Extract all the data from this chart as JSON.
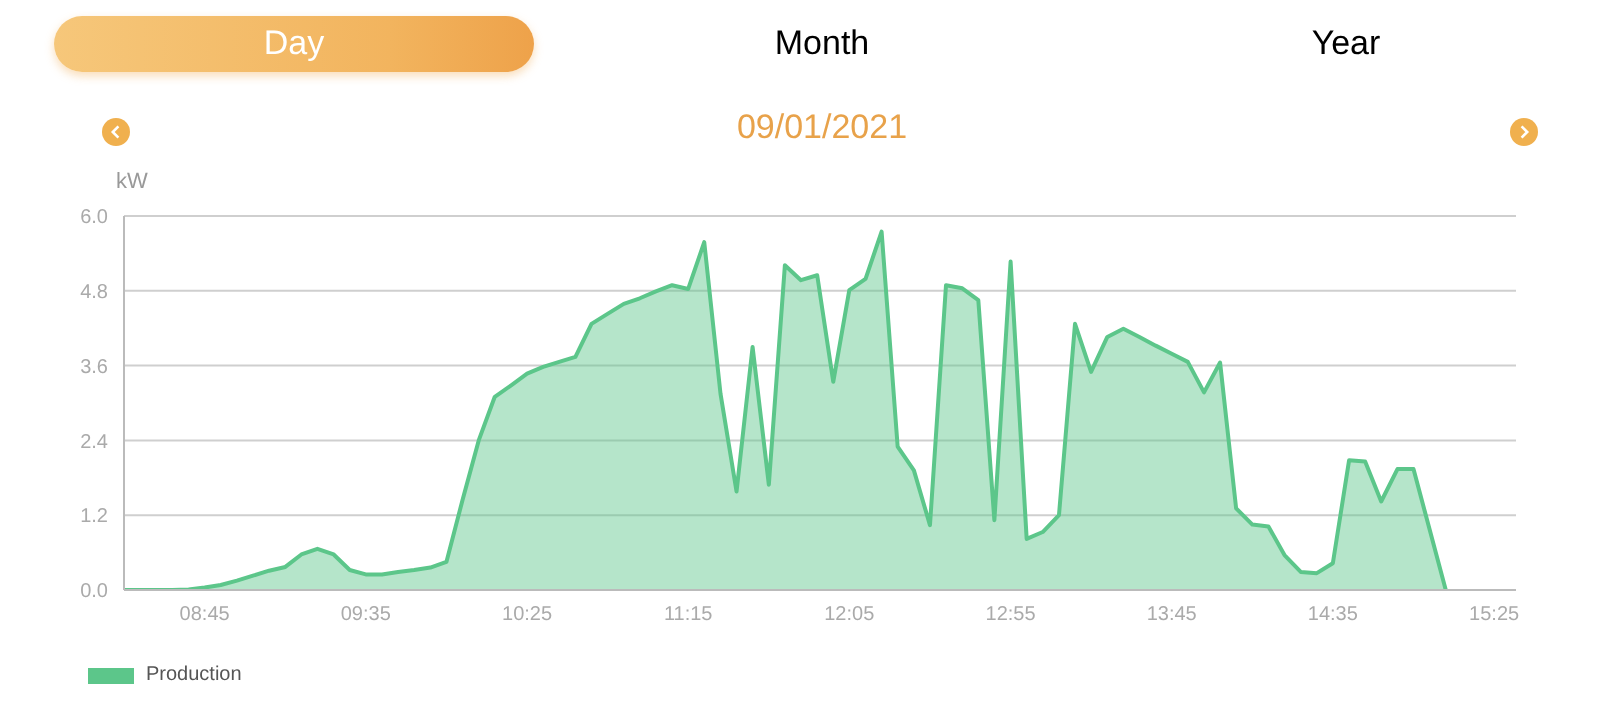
{
  "chart_data": {
    "type": "area",
    "title": "09/01/2021",
    "annotations": [
      "Day",
      "Month",
      "Year"
    ],
    "ylabel": "kW",
    "x": [
      8.333,
      8.417,
      8.5,
      8.583,
      8.667,
      8.75,
      8.833,
      8.917,
      9.0,
      9.083,
      9.167,
      9.25,
      9.333,
      9.417,
      9.5,
      9.583,
      9.667,
      9.75,
      9.833,
      9.917,
      10.0,
      10.083,
      10.167,
      10.25,
      10.333,
      10.417,
      10.5,
      10.583,
      10.667,
      10.75,
      10.833,
      10.917,
      11.0,
      11.083,
      11.167,
      11.25,
      11.333,
      11.417,
      11.5,
      11.583,
      11.667,
      11.75,
      11.833,
      11.917,
      12.0,
      12.083,
      12.167,
      12.25,
      12.333,
      12.417,
      12.5,
      12.583,
      12.667,
      12.75,
      12.833,
      12.917,
      13.0,
      13.083,
      13.167,
      13.25,
      13.333,
      13.417,
      13.5,
      13.583,
      13.667,
      13.75,
      13.833,
      13.917,
      14.0,
      14.083,
      14.167,
      14.25,
      14.333,
      14.417,
      14.5,
      14.583,
      14.667,
      14.75,
      14.833,
      14.917,
      15.0,
      15.167
    ],
    "series": [
      {
        "name": "Production",
        "color": "#5cc68a",
        "values": [
          0,
          0,
          0,
          0,
          0.01,
          0.04,
          0.08,
          0.15,
          0.23,
          0.31,
          0.37,
          0.57,
          0.66,
          0.57,
          0.32,
          0.25,
          0.25,
          0.29,
          0.32,
          0.36,
          0.45,
          1.44,
          2.4,
          3.1,
          3.28,
          3.47,
          3.58,
          3.66,
          3.74,
          4.27,
          4.43,
          4.59,
          4.68,
          4.79,
          4.89,
          4.83,
          5.58,
          3.15,
          1.58,
          3.9,
          1.69,
          5.21,
          4.97,
          5.05,
          3.34,
          4.81,
          4.99,
          5.75,
          2.3,
          1.92,
          1.04,
          4.89,
          4.84,
          4.65,
          1.12,
          5.27,
          0.82,
          0.93,
          1.2,
          4.27,
          3.5,
          4.06,
          4.19,
          4.06,
          3.92,
          3.79,
          3.66,
          3.17,
          3.65,
          1.31,
          1.05,
          1.02,
          0.56,
          0.29,
          0.27,
          0.43,
          2.08,
          2.06,
          1.42,
          1.94,
          1.94,
          0
        ]
      }
    ],
    "xlim": [
      8.333,
      15.53
    ],
    "xticks": [
      {
        "value": 8.75,
        "label": "08:45"
      },
      {
        "value": 9.583,
        "label": "09:35"
      },
      {
        "value": 10.417,
        "label": "10:25"
      },
      {
        "value": 11.25,
        "label": "11:15"
      },
      {
        "value": 12.083,
        "label": "12:05"
      },
      {
        "value": 12.917,
        "label": "12:55"
      },
      {
        "value": 13.75,
        "label": "13:45"
      },
      {
        "value": 14.583,
        "label": "14:35"
      },
      {
        "value": 15.417,
        "label": "15:25"
      }
    ],
    "ylim": [
      0,
      6
    ],
    "yticks": [
      {
        "value": 0,
        "label": "0.0"
      },
      1.2,
      2.4,
      3.6,
      4.8,
      {
        "value": 6,
        "label": "6.0"
      }
    ],
    "grid": "y",
    "legend": "bottom left",
    "marker": "none",
    "line_style": "solid"
  }
}
